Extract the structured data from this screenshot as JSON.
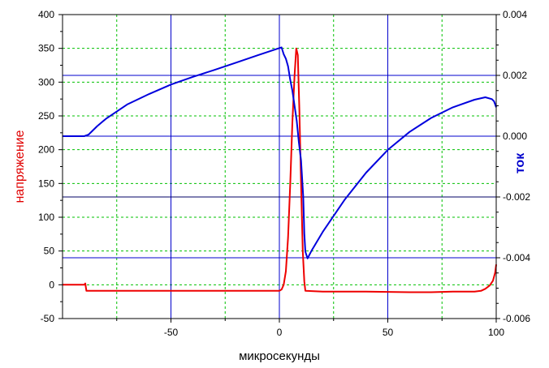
{
  "chart_data": {
    "type": "line",
    "xlabel": "микросекунды",
    "ylabel_left": "напряжение",
    "ylabel_right": "ток",
    "xlim": [
      -100,
      100
    ],
    "ylim_left": [
      -50,
      400
    ],
    "ylim_right": [
      -0.006,
      0.004
    ],
    "grid": true,
    "x_ticks": [
      {
        "value": -50,
        "label": "-50"
      },
      {
        "value": 0,
        "label": "0"
      },
      {
        "value": 50,
        "label": "50"
      },
      {
        "value": 100,
        "label": "100"
      }
    ],
    "y_left_ticks": [
      {
        "value": 400,
        "label": "400"
      },
      {
        "value": 350,
        "label": "350"
      },
      {
        "value": 300,
        "label": "300"
      },
      {
        "value": 250,
        "label": "250"
      },
      {
        "value": 200,
        "label": "200"
      },
      {
        "value": 150,
        "label": "150"
      },
      {
        "value": 100,
        "label": "100"
      },
      {
        "value": 50,
        "label": "50"
      },
      {
        "value": 0,
        "label": "0"
      },
      {
        "value": -50,
        "label": "-50"
      }
    ],
    "y_right_ticks": [
      {
        "value": 0.004,
        "label": "0.004"
      },
      {
        "value": 0.002,
        "label": "0.002"
      },
      {
        "value": 0.0,
        "label": "0.000"
      },
      {
        "value": -0.002,
        "label": "-0.002"
      },
      {
        "value": -0.004,
        "label": "-0.004"
      },
      {
        "value": -0.006,
        "label": "-0.006"
      }
    ],
    "series": [
      {
        "axis": "left",
        "color": "#ee0000",
        "points": [
          [
            -100,
            0
          ],
          [
            -90,
            0
          ],
          [
            -89.5,
            2
          ],
          [
            -89,
            -9
          ],
          [
            -80,
            -9
          ],
          [
            -60,
            -9
          ],
          [
            -40,
            -9
          ],
          [
            -20,
            -9
          ],
          [
            0,
            -9
          ],
          [
            1,
            -7
          ],
          [
            2,
            0
          ],
          [
            3,
            20
          ],
          [
            4,
            70
          ],
          [
            5,
            150
          ],
          [
            6,
            240
          ],
          [
            7,
            310
          ],
          [
            7.8,
            350
          ],
          [
            8.5,
            340
          ],
          [
            9.2,
            260
          ],
          [
            10,
            150
          ],
          [
            10.8,
            50
          ],
          [
            11.5,
            5
          ],
          [
            12,
            -9
          ],
          [
            20,
            -10
          ],
          [
            40,
            -10
          ],
          [
            60,
            -11
          ],
          [
            70,
            -11
          ],
          [
            80,
            -10
          ],
          [
            90,
            -10
          ],
          [
            93,
            -9
          ],
          [
            95,
            -6
          ],
          [
            97,
            -1
          ],
          [
            98.5,
            6
          ],
          [
            99.5,
            18
          ],
          [
            100,
            30
          ]
        ]
      },
      {
        "axis": "right",
        "color": "#0000dd",
        "points": [
          [
            -100,
            0.0
          ],
          [
            -90,
            0.0
          ],
          [
            -88,
            5e-05
          ],
          [
            -84,
            0.00033
          ],
          [
            -80,
            0.00057
          ],
          [
            -70,
            0.00105
          ],
          [
            -60,
            0.00139
          ],
          [
            -50,
            0.0017
          ],
          [
            -40,
            0.00195
          ],
          [
            -30,
            0.00218
          ],
          [
            -20,
            0.00242
          ],
          [
            -10,
            0.00266
          ],
          [
            -2,
            0.00285
          ],
          [
            0,
            0.0029
          ],
          [
            1,
            0.00292
          ],
          [
            2,
            0.0027
          ],
          [
            3,
            0.00255
          ],
          [
            4,
            0.0023
          ],
          [
            5,
            0.00185
          ],
          [
            6,
            0.0015
          ],
          [
            7,
            0.001
          ],
          [
            8,
            0.0005
          ],
          [
            9,
            -0.0002
          ],
          [
            10,
            -0.0008
          ],
          [
            11,
            -0.002
          ],
          [
            11.5,
            -0.0032
          ],
          [
            12,
            -0.0038
          ],
          [
            13,
            -0.00402
          ],
          [
            15,
            -0.00375
          ],
          [
            20,
            -0.00315
          ],
          [
            30,
            -0.0021
          ],
          [
            40,
            -0.0012
          ],
          [
            50,
            -0.00045
          ],
          [
            60,
            0.00014
          ],
          [
            70,
            0.0006
          ],
          [
            80,
            0.00095
          ],
          [
            90,
            0.0012
          ],
          [
            95,
            0.00128
          ],
          [
            98,
            0.00122
          ],
          [
            99,
            0.00115
          ],
          [
            100,
            0.00095
          ]
        ]
      }
    ]
  }
}
